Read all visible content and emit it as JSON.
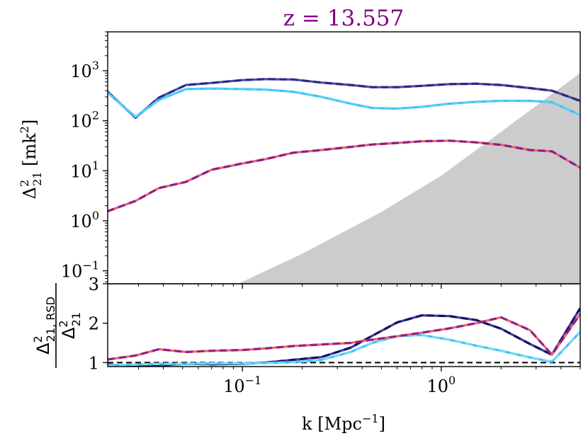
{
  "chart_data": [
    {
      "type": "line",
      "title": "z = 13.557",
      "title_color": "#800080",
      "xscale": "log",
      "yscale": "log",
      "xlim": [
        0.021,
        5.0
      ],
      "ylim": [
        0.055,
        6000
      ],
      "ylabel_parts": [
        "Δ",
        "2",
        "21",
        " [mk",
        "2",
        "]"
      ],
      "ylabel": "Δ²21 [mk²]",
      "ytick_values": [
        0.1,
        1,
        10,
        100,
        1000
      ],
      "ytick_labels": [
        {
          "base": "10",
          "exp": "−1"
        },
        {
          "base": "10",
          "exp": "0"
        },
        {
          "base": "10",
          "exp": "1"
        },
        {
          "base": "10",
          "exp": "2"
        },
        {
          "base": "10",
          "exp": "3"
        }
      ],
      "shaded_region": {
        "color": "#cccccc",
        "x": [
          0.095,
          0.2,
          0.5,
          1.0,
          2.0,
          5.0
        ],
        "y": [
          0.055,
          0.22,
          1.5,
          8,
          60,
          900
        ]
      },
      "series": [
        {
          "name": "dark-blue-pair",
          "colors": [
            "#4b4bb0",
            "#2a2a80"
          ],
          "x": [
            0.021,
            0.029,
            0.038,
            0.052,
            0.07,
            0.1,
            0.13,
            0.18,
            0.25,
            0.35,
            0.45,
            0.6,
            0.8,
            1.1,
            1.5,
            2.0,
            2.8,
            3.6,
            5.0
          ],
          "y": [
            380,
            115,
            290,
            520,
            570,
            650,
            680,
            670,
            580,
            520,
            470,
            470,
            500,
            540,
            550,
            520,
            450,
            400,
            250
          ]
        },
        {
          "name": "light-blue-pair",
          "colors": [
            "#3fc2f2",
            "#5ad0f5"
          ],
          "x": [
            0.021,
            0.029,
            0.038,
            0.052,
            0.07,
            0.1,
            0.13,
            0.18,
            0.25,
            0.35,
            0.45,
            0.6,
            0.8,
            1.1,
            1.5,
            2.0,
            2.8,
            3.6,
            5.0
          ],
          "y": [
            360,
            120,
            260,
            430,
            440,
            430,
            420,
            380,
            300,
            220,
            180,
            175,
            190,
            220,
            240,
            250,
            250,
            235,
            130
          ]
        },
        {
          "name": "red-magenta-pair",
          "colors": [
            "#e8607a",
            "#8c1f82"
          ],
          "x": [
            0.021,
            0.029,
            0.038,
            0.052,
            0.07,
            0.1,
            0.13,
            0.18,
            0.25,
            0.35,
            0.45,
            0.6,
            0.8,
            1.1,
            1.5,
            2.0,
            2.8,
            3.6,
            5.0
          ],
          "y": [
            1.55,
            2.5,
            4.5,
            6.0,
            10.5,
            14.0,
            17.0,
            23.0,
            26.0,
            30.0,
            33.5,
            36.0,
            39.0,
            40.0,
            37.0,
            33.0,
            26.0,
            24.5,
            11.5
          ]
        }
      ]
    },
    {
      "type": "line",
      "xscale": "log",
      "xlim": [
        0.021,
        5.0
      ],
      "ylim": [
        0.9,
        3.0
      ],
      "xlabel_parts": [
        "k [Mpc",
        "−1",
        "]"
      ],
      "xlabel": "k [Mpc⁻¹]",
      "ylabel_num_parts": [
        "Δ",
        "2",
        "21, RSD"
      ],
      "ylabel_den_parts": [
        "Δ",
        "2",
        "21"
      ],
      "ylabel": "Δ²21, RSD / Δ²21",
      "ytick_values": [
        1,
        2,
        3
      ],
      "ytick_labels": [
        "1",
        "2",
        "3"
      ],
      "xtick_values": [
        0.1,
        1.0
      ],
      "xtick_labels": [
        {
          "base": "10",
          "exp": "−1"
        },
        {
          "base": "10",
          "exp": "0"
        }
      ],
      "reference_line": {
        "y": 1.0,
        "style": "dashed",
        "color": "#000000"
      },
      "series": [
        {
          "name": "dark-blue-ratio",
          "colors": [
            "#3b3bb0",
            "#14145a"
          ],
          "x": [
            0.021,
            0.029,
            0.038,
            0.052,
            0.07,
            0.1,
            0.13,
            0.18,
            0.25,
            0.35,
            0.45,
            0.6,
            0.8,
            1.1,
            1.5,
            2.0,
            2.8,
            3.6,
            5.0
          ],
          "y": [
            0.95,
            0.9,
            0.93,
            0.97,
            0.96,
            0.97,
            1.0,
            1.07,
            1.14,
            1.38,
            1.68,
            2.02,
            2.2,
            2.18,
            2.08,
            1.86,
            1.47,
            1.2,
            2.38
          ]
        },
        {
          "name": "light-blue-ratio",
          "colors": [
            "#3fc2f2",
            "#7ad8f7"
          ],
          "x": [
            0.021,
            0.029,
            0.038,
            0.052,
            0.07,
            0.1,
            0.13,
            0.18,
            0.25,
            0.35,
            0.45,
            0.6,
            0.8,
            1.1,
            1.5,
            2.0,
            2.8,
            3.6,
            5.0
          ],
          "y": [
            0.93,
            0.95,
            0.97,
            0.97,
            0.98,
            0.98,
            0.99,
            1.01,
            1.07,
            1.27,
            1.5,
            1.67,
            1.7,
            1.58,
            1.43,
            1.3,
            1.13,
            1.02,
            1.78
          ]
        },
        {
          "name": "red-magenta-ratio",
          "colors": [
            "#f0607a",
            "#90237e"
          ],
          "x": [
            0.021,
            0.029,
            0.038,
            0.052,
            0.07,
            0.1,
            0.13,
            0.18,
            0.25,
            0.35,
            0.45,
            0.6,
            0.8,
            1.1,
            1.5,
            2.0,
            2.8,
            3.6,
            5.0
          ],
          "y": [
            1.08,
            1.18,
            1.34,
            1.27,
            1.3,
            1.32,
            1.36,
            1.42,
            1.46,
            1.5,
            1.58,
            1.67,
            1.76,
            1.87,
            2.0,
            2.15,
            1.82,
            1.2,
            2.23
          ]
        }
      ]
    }
  ]
}
